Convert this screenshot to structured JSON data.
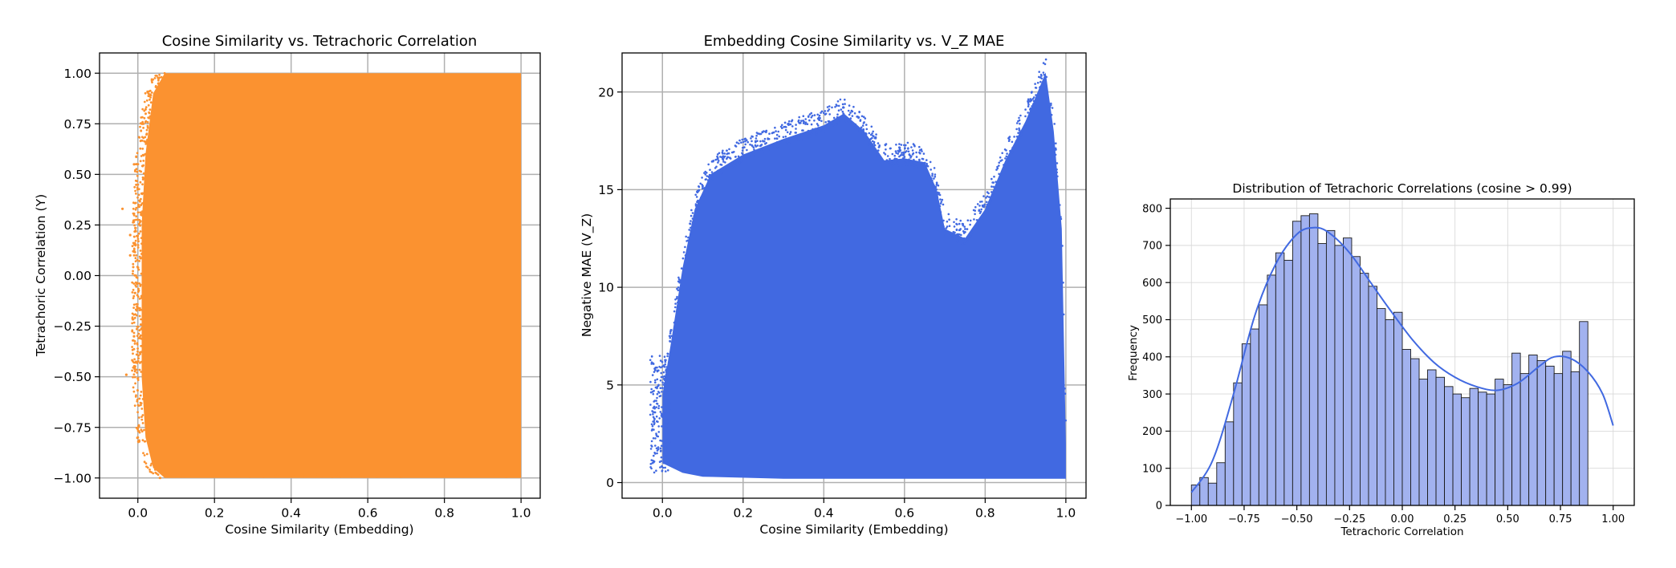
{
  "chart_data": [
    {
      "type": "scatter",
      "title": "Cosine Similarity vs. Tetrachoric Correlation",
      "xlabel": "Cosine Similarity (Embedding)",
      "ylabel": "Tetrachoric Correlation (Y)",
      "xlim": [
        -0.1,
        1.05
      ],
      "ylim": [
        -1.1,
        1.1
      ],
      "xticks": [
        0.0,
        0.2,
        0.4,
        0.6,
        0.8,
        1.0
      ],
      "xtick_labels": [
        "0.0",
        "0.2",
        "0.4",
        "0.6",
        "0.8",
        "1.0"
      ],
      "yticks": [
        -1.0,
        -0.75,
        -0.5,
        -0.25,
        0.0,
        0.25,
        0.5,
        0.75,
        1.0
      ],
      "ytick_labels": [
        "−1.00",
        "−0.75",
        "−0.50",
        "−0.25",
        "0.00",
        "0.25",
        "0.50",
        "0.75",
        "1.00"
      ],
      "grid": true,
      "color": "#fb9230",
      "region": {
        "y_top": 1.0,
        "y_bottom": -1.0,
        "x_right": 1.0,
        "left_edge": [
          [
            0.07,
            1.0
          ],
          [
            0.04,
            0.9
          ],
          [
            0.02,
            0.6
          ],
          [
            0.01,
            0.25
          ],
          [
            0.01,
            0.0
          ],
          [
            0.01,
            -0.5
          ],
          [
            0.02,
            -0.8
          ],
          [
            0.04,
            -0.95
          ],
          [
            0.07,
            -1.0
          ]
        ]
      },
      "outliers": [
        [
          -0.04,
          0.33
        ],
        [
          -0.02,
          0.2
        ],
        [
          -0.03,
          -0.49
        ],
        [
          -0.01,
          0.55
        ],
        [
          -0.02,
          0.1
        ],
        [
          0.0,
          -0.8
        ],
        [
          -0.01,
          -0.3
        ]
      ]
    },
    {
      "type": "scatter",
      "title": "Embedding Cosine Similarity vs. V_Z MAE",
      "xlabel": "Cosine Similarity (Embedding)",
      "ylabel": "Negative MAE (V_Z)",
      "xlim": [
        -0.1,
        1.05
      ],
      "ylim": [
        -0.8,
        22
      ],
      "xticks": [
        0.0,
        0.2,
        0.4,
        0.6,
        0.8,
        1.0
      ],
      "xtick_labels": [
        "0.0",
        "0.2",
        "0.4",
        "0.6",
        "0.8",
        "1.0"
      ],
      "yticks": [
        0,
        5,
        10,
        15,
        20
      ],
      "ytick_labels": [
        "0",
        "5",
        "10",
        "15",
        "20"
      ],
      "grid": true,
      "color": "#4169e1",
      "envelope_upper": [
        [
          0.0,
          4.5
        ],
        [
          0.02,
          7.0
        ],
        [
          0.05,
          11.0
        ],
        [
          0.08,
          14.0
        ],
        [
          0.12,
          15.8
        ],
        [
          0.2,
          16.8
        ],
        [
          0.3,
          17.6
        ],
        [
          0.4,
          18.3
        ],
        [
          0.45,
          18.9
        ],
        [
          0.5,
          18.0
        ],
        [
          0.55,
          16.5
        ],
        [
          0.6,
          16.6
        ],
        [
          0.65,
          16.4
        ],
        [
          0.68,
          15.0
        ],
        [
          0.7,
          13.0
        ],
        [
          0.75,
          12.5
        ],
        [
          0.8,
          14.0
        ],
        [
          0.85,
          16.5
        ],
        [
          0.9,
          18.5
        ],
        [
          0.93,
          20.0
        ],
        [
          0.95,
          21.0
        ],
        [
          0.97,
          18.0
        ],
        [
          0.99,
          13.0
        ],
        [
          1.0,
          2.0
        ]
      ],
      "envelope_lower": [
        [
          0.0,
          1.0
        ],
        [
          0.05,
          0.5
        ],
        [
          0.1,
          0.3
        ],
        [
          0.3,
          0.2
        ],
        [
          0.6,
          0.2
        ],
        [
          0.9,
          0.2
        ],
        [
          1.0,
          0.2
        ]
      ]
    },
    {
      "type": "histogram",
      "title": "Distribution of Tetrachoric Correlations (cosine > 0.99)",
      "xlabel": "Tetrachoric Correlation",
      "ylabel": "Frequency",
      "xlim": [
        -1.1,
        1.1
      ],
      "ylim": [
        0,
        825
      ],
      "xticks": [
        -1.0,
        -0.75,
        -0.5,
        -0.25,
        0.0,
        0.25,
        0.5,
        0.75,
        1.0
      ],
      "xtick_labels": [
        "−1.00",
        "−0.75",
        "−0.50",
        "−0.25",
        "0.00",
        "0.25",
        "0.50",
        "0.75",
        "1.00"
      ],
      "yticks": [
        0,
        100,
        200,
        300,
        400,
        500,
        600,
        700,
        800
      ],
      "ytick_labels": [
        "0",
        "100",
        "200",
        "300",
        "400",
        "500",
        "600",
        "700",
        "800"
      ],
      "grid": true,
      "bin_start": -1.0,
      "bin_width": 0.04,
      "bin_counts": [
        55,
        75,
        60,
        115,
        225,
        330,
        435,
        475,
        540,
        620,
        680,
        660,
        765,
        780,
        785,
        705,
        740,
        700,
        720,
        670,
        625,
        590,
        530,
        500,
        520,
        420,
        395,
        340,
        365,
        345,
        320,
        300,
        290,
        315,
        305,
        300,
        340,
        325,
        410,
        355,
        405,
        390,
        375,
        355,
        415,
        360,
        495
      ],
      "kde": {
        "x": [
          -1.0,
          -0.9,
          -0.8,
          -0.7,
          -0.6,
          -0.5,
          -0.42,
          -0.35,
          -0.25,
          -0.15,
          -0.05,
          0.05,
          0.15,
          0.25,
          0.35,
          0.45,
          0.55,
          0.65,
          0.72,
          0.8,
          0.88,
          0.95,
          1.0
        ],
        "y": [
          35,
          120,
          300,
          510,
          650,
          730,
          748,
          735,
          680,
          600,
          520,
          445,
          385,
          345,
          320,
          310,
          330,
          375,
          400,
          395,
          360,
          300,
          215
        ]
      },
      "bar_color": "#a2b2ef",
      "kde_color": "#4169e1"
    }
  ]
}
